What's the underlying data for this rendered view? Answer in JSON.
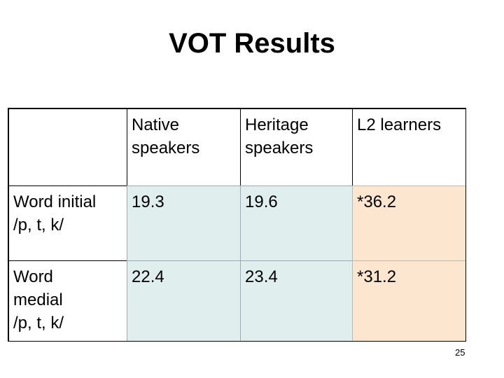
{
  "title": "VOT Results",
  "table": {
    "header": [
      [],
      [
        "Native",
        "speakers"
      ],
      [
        "Heritage",
        "speakers"
      ],
      [
        "L2 learners"
      ]
    ],
    "rows": [
      [
        [
          "Word initial",
          "/p, t, k/"
        ],
        [
          "19.3"
        ],
        [
          "19.6"
        ],
        [
          "*36.2"
        ]
      ],
      [
        [
          "Word",
          "medial",
          "/p, t, k/"
        ],
        [
          "22.4"
        ],
        [
          "23.4"
        ],
        [
          "*31.2"
        ]
      ]
    ]
  },
  "page_number": "25"
}
